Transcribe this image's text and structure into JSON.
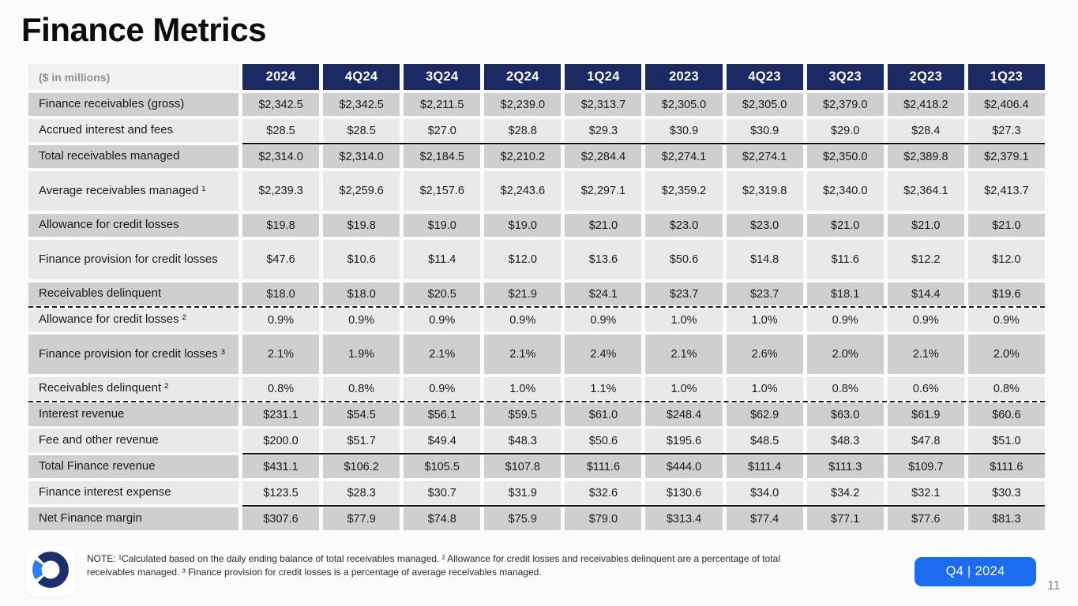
{
  "title": "Finance Metrics",
  "colors": {
    "header_navy": "#1c2a63",
    "row_dark": "#cfcfcf",
    "row_light": "#e9e9e9",
    "badge_blue": "#1c6cf2",
    "logo_navy": "#1b2f6e",
    "logo_blue": "#2e7ef7"
  },
  "table": {
    "corner_label": "($ in millions)",
    "columns": [
      "2024",
      "4Q24",
      "3Q24",
      "2Q24",
      "1Q24",
      "2023",
      "4Q23",
      "3Q23",
      "2Q23",
      "1Q23"
    ],
    "rows": [
      {
        "label": "Finance receivables (gross)",
        "shade": "dark",
        "tall": false,
        "separator": "none",
        "values": [
          "$2,342.5",
          "$2,342.5",
          "$2,211.5",
          "$2,239.0",
          "$2,313.7",
          "$2,305.0",
          "$2,305.0",
          "$2,379.0",
          "$2,418.2",
          "$2,406.4"
        ]
      },
      {
        "label": "Accrued interest and fees",
        "shade": "light",
        "tall": false,
        "separator": "none",
        "values": [
          "$28.5",
          "$28.5",
          "$27.0",
          "$28.8",
          "$29.3",
          "$30.9",
          "$30.9",
          "$29.0",
          "$28.4",
          "$27.3"
        ]
      },
      {
        "label": "Total receivables managed",
        "shade": "dark",
        "tall": false,
        "separator": "solid",
        "values": [
          "$2,314.0",
          "$2,314.0",
          "$2,184.5",
          "$2,210.2",
          "$2,284.4",
          "$2,274.1",
          "$2,274.1",
          "$2,350.0",
          "$2,389.8",
          "$2,379.1"
        ]
      },
      {
        "label": "Average receivables managed ¹",
        "shade": "light",
        "tall": true,
        "separator": "none",
        "values": [
          "$2,239.3",
          "$2,259.6",
          "$2,157.6",
          "$2,243.6",
          "$2,297.1",
          "$2,359.2",
          "$2,319.8",
          "$2,340.0",
          "$2,364.1",
          "$2,413.7"
        ]
      },
      {
        "label": "Allowance for credit losses",
        "shade": "dark",
        "tall": false,
        "separator": "none",
        "values": [
          "$19.8",
          "$19.8",
          "$19.0",
          "$19.0",
          "$21.0",
          "$23.0",
          "$23.0",
          "$21.0",
          "$21.0",
          "$21.0"
        ]
      },
      {
        "label": "Finance provision for credit losses",
        "shade": "light",
        "tall": true,
        "separator": "none",
        "values": [
          "$47.6",
          "$10.6",
          "$11.4",
          "$12.0",
          "$13.6",
          "$50.6",
          "$14.8",
          "$11.6",
          "$12.2",
          "$12.0"
        ]
      },
      {
        "label": "Receivables delinquent",
        "shade": "dark",
        "tall": false,
        "separator": "none",
        "values": [
          "$18.0",
          "$18.0",
          "$20.5",
          "$21.9",
          "$24.1",
          "$23.7",
          "$23.7",
          "$18.1",
          "$14.4",
          "$19.6"
        ]
      },
      {
        "label": "Allowance for credit losses ²",
        "shade": "light",
        "tall": false,
        "separator": "dashed",
        "values": [
          "0.9%",
          "0.9%",
          "0.9%",
          "0.9%",
          "0.9%",
          "1.0%",
          "1.0%",
          "0.9%",
          "0.9%",
          "0.9%"
        ]
      },
      {
        "label": "Finance provision for credit losses ³",
        "shade": "dark",
        "tall": true,
        "separator": "none",
        "values": [
          "2.1%",
          "1.9%",
          "2.1%",
          "2.1%",
          "2.4%",
          "2.1%",
          "2.6%",
          "2.0%",
          "2.1%",
          "2.0%"
        ]
      },
      {
        "label": "Receivables delinquent ²",
        "shade": "light",
        "tall": false,
        "separator": "none",
        "values": [
          "0.8%",
          "0.8%",
          "0.9%",
          "1.0%",
          "1.1%",
          "1.0%",
          "1.0%",
          "0.8%",
          "0.6%",
          "0.8%"
        ]
      },
      {
        "label": "Interest revenue",
        "shade": "dark",
        "tall": false,
        "separator": "dashed",
        "values": [
          "$231.1",
          "$54.5",
          "$56.1",
          "$59.5",
          "$61.0",
          "$248.4",
          "$62.9",
          "$63.0",
          "$61.9",
          "$60.6"
        ]
      },
      {
        "label": "Fee and other revenue",
        "shade": "light",
        "tall": false,
        "separator": "none",
        "values": [
          "$200.0",
          "$51.7",
          "$49.4",
          "$48.3",
          "$50.6",
          "$195.6",
          "$48.5",
          "$48.3",
          "$47.8",
          "$51.0"
        ]
      },
      {
        "label": "Total Finance revenue",
        "shade": "dark",
        "tall": false,
        "separator": "solid",
        "values": [
          "$431.1",
          "$106.2",
          "$105.5",
          "$107.8",
          "$111.6",
          "$444.0",
          "$111.4",
          "$111.3",
          "$109.7",
          "$111.6"
        ]
      },
      {
        "label": "Finance interest expense",
        "shade": "light",
        "tall": false,
        "separator": "none",
        "values": [
          "$123.5",
          "$28.3",
          "$30.7",
          "$31.9",
          "$32.6",
          "$130.6",
          "$34.0",
          "$34.2",
          "$32.1",
          "$30.3"
        ]
      },
      {
        "label": "Net Finance margin",
        "shade": "dark",
        "tall": false,
        "separator": "solid",
        "values": [
          "$307.6",
          "$77.9",
          "$74.8",
          "$75.9",
          "$79.0",
          "$313.4",
          "$77.4",
          "$77.1",
          "$77.6",
          "$81.3"
        ]
      }
    ]
  },
  "footer": {
    "note_lines": [
      "NOTE: ¹Calculated based on the daily ending balance of total receivables managed. ² Allowance for credit losses and receivables delinquent are a percentage of total",
      "receivables managed. ³ Finance provision for credit losses is a percentage of average receivables managed."
    ],
    "badge_label": "Q4 | 2024",
    "page_number": "11"
  }
}
